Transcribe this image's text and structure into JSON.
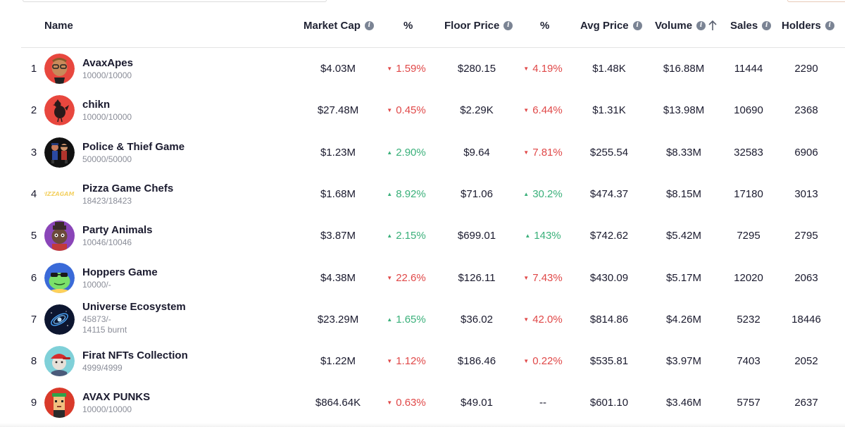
{
  "header": {
    "name": "Name",
    "market_cap": "Market Cap",
    "pct1": "%",
    "floor_price": "Floor Price",
    "pct2": "%",
    "avg_price": "Avg Price",
    "volume": "Volume",
    "sales": "Sales",
    "holders": "Holders",
    "info_glyph": "i"
  },
  "colors": {
    "down": "#e04848",
    "up": "#3ab07a",
    "header_text": "#1f2233",
    "sub_text": "#8a8d98"
  },
  "rows": [
    {
      "rank": "1",
      "name": "AvaxApes",
      "supply": "10000/10000",
      "extra": "",
      "market_cap": "$4.03M",
      "mc_dir": "down",
      "mc_arrow": "▼",
      "mc_pct": "1.59%",
      "floor": "$280.15",
      "fl_dir": "down",
      "fl_arrow": "▼",
      "fl_pct": "4.19%",
      "avg": "$1.48K",
      "volume": "$16.88M",
      "sales": "11444",
      "holders": "2290",
      "avatar_icon": "ape-icon"
    },
    {
      "rank": "2",
      "name": "chikn",
      "supply": "10000/10000",
      "extra": "",
      "market_cap": "$27.48M",
      "mc_dir": "down",
      "mc_arrow": "▼",
      "mc_pct": "0.45%",
      "floor": "$2.29K",
      "fl_dir": "down",
      "fl_arrow": "▼",
      "fl_pct": "6.44%",
      "avg": "$1.31K",
      "volume": "$13.98M",
      "sales": "10690",
      "holders": "2368",
      "avatar_icon": "chicken-icon"
    },
    {
      "rank": "3",
      "name": "Police & Thief Game",
      "supply": "50000/50000",
      "extra": "",
      "market_cap": "$1.23M",
      "mc_dir": "up",
      "mc_arrow": "▲",
      "mc_pct": "2.90%",
      "floor": "$9.64",
      "fl_dir": "down",
      "fl_arrow": "▼",
      "fl_pct": "7.81%",
      "avg": "$255.54",
      "volume": "$8.33M",
      "sales": "32583",
      "holders": "6906",
      "avatar_icon": "police-thief-icon"
    },
    {
      "rank": "4",
      "name": "Pizza Game Chefs",
      "supply": "18423/18423",
      "extra": "",
      "market_cap": "$1.68M",
      "mc_dir": "up",
      "mc_arrow": "▲",
      "mc_pct": "8.92%",
      "floor": "$71.06",
      "fl_dir": "up",
      "fl_arrow": "▲",
      "fl_pct": "30.2%",
      "avg": "$474.37",
      "volume": "$8.15M",
      "sales": "17180",
      "holders": "3013",
      "avatar_icon": "pizza-game-logo-icon",
      "logo_text_1": "PIZZA",
      "logo_text_2": "GAME"
    },
    {
      "rank": "5",
      "name": "Party Animals",
      "supply": "10046/10046",
      "extra": "",
      "market_cap": "$3.87M",
      "mc_dir": "up",
      "mc_arrow": "▲",
      "mc_pct": "2.15%",
      "floor": "$699.01",
      "fl_dir": "up",
      "fl_arrow": "▲",
      "fl_pct": "143%",
      "avg": "$742.62",
      "volume": "$5.42M",
      "sales": "7295",
      "holders": "2795",
      "avatar_icon": "animal-character-icon"
    },
    {
      "rank": "6",
      "name": "Hoppers Game",
      "supply": "10000/-",
      "extra": "",
      "market_cap": "$4.38M",
      "mc_dir": "down",
      "mc_arrow": "▼",
      "mc_pct": "22.6%",
      "floor": "$126.11",
      "fl_dir": "down",
      "fl_arrow": "▼",
      "fl_pct": "7.43%",
      "avg": "$430.09",
      "volume": "$5.17M",
      "sales": "12020",
      "holders": "2063",
      "avatar_icon": "frog-icon"
    },
    {
      "rank": "7",
      "name": "Universe Ecosystem",
      "supply": "45873/-",
      "extra": "14115 burnt",
      "market_cap": "$23.29M",
      "mc_dir": "up",
      "mc_arrow": "▲",
      "mc_pct": "1.65%",
      "floor": "$36.02",
      "fl_dir": "down",
      "fl_arrow": "▼",
      "fl_pct": "42.0%",
      "avg": "$814.86",
      "volume": "$4.26M",
      "sales": "5232",
      "holders": "18446",
      "avatar_icon": "galaxy-icon"
    },
    {
      "rank": "8",
      "name": "Firat NFTs Collection",
      "supply": "4999/4999",
      "extra": "",
      "market_cap": "$1.22M",
      "mc_dir": "down",
      "mc_arrow": "▼",
      "mc_pct": "1.12%",
      "floor": "$186.46",
      "fl_dir": "down",
      "fl_arrow": "▼",
      "fl_pct": "0.22%",
      "avg": "$535.81",
      "volume": "$3.97M",
      "sales": "7403",
      "holders": "2052",
      "avatar_icon": "cap-character-icon"
    },
    {
      "rank": "9",
      "name": "AVAX PUNKS",
      "supply": "10000/10000",
      "extra": "",
      "market_cap": "$864.64K",
      "mc_dir": "down",
      "mc_arrow": "▼",
      "mc_pct": "0.63%",
      "floor": "$49.01",
      "fl_dir": "none",
      "fl_arrow": "",
      "fl_pct": "--",
      "avg": "$601.10",
      "volume": "$3.46M",
      "sales": "5757",
      "holders": "2637",
      "avatar_icon": "pixel-punk-icon"
    }
  ]
}
